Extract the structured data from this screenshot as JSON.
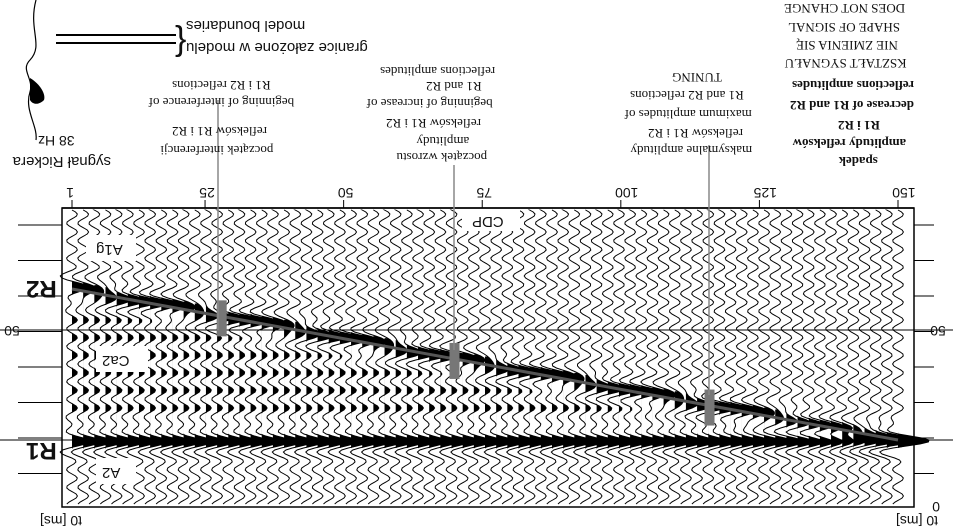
{
  "labels": {
    "model_boundaries": "model boundaries",
    "granice": "granice założone w modelu",
    "ricker_freq": "38 Hz",
    "ricker_name": "sygnał Rickera",
    "interference_en_1": "beginning of interference of",
    "interference_en_2": "R1 i R2 reflections",
    "interference_pl_1": "początek interferencji",
    "interference_pl_2": "refleksów R1 i R2",
    "increase_en_1": "beginning of increase of",
    "increase_en_2": "R1 and R2",
    "increase_en_3": "reflections  amplitudes",
    "increase_pl_1": "początek wzrostu",
    "increase_pl_2": "amplitudy",
    "increase_pl_3": "refleksów R1 i R2",
    "tuning": "TUNING",
    "maxamp_en_1": "maximum amplitudes of",
    "maxamp_en_2": "R1 and R2 reflections",
    "maxamp_pl_1": "maksymalne amplitudy",
    "maxamp_pl_2": "refleksów R1 i R2",
    "shape_en_1": "DOES NOT CHANGE",
    "shape_en_2": "SHAPE OF SIGNAL",
    "shape_pl_1": "NIE ZMIENIA SIĘ",
    "shape_pl_2": "KSZTAŁT SYGNAŁU",
    "decrease_en_1": "decrease of R1 and R2",
    "decrease_en_2": "reflections amplitudes",
    "decrease_pl_1": "spadek",
    "decrease_pl_2": "amplitudy refleksów",
    "decrease_pl_3": "R1 i R2",
    "cdp": "CDP",
    "t0": "t0 [ms]",
    "layer_top": "A1g",
    "layer_mid": "Ca2",
    "layer_bot": "A2",
    "r1": "R1",
    "r2": "R2",
    "time_50": "50",
    "time_0": "0"
  },
  "cdp_ticks": [
    {
      "value": 1,
      "label": "1"
    },
    {
      "value": 25,
      "label": "25"
    },
    {
      "value": 50,
      "label": "50"
    },
    {
      "value": 75,
      "label": "75"
    },
    {
      "value": 100,
      "label": "100"
    },
    {
      "value": 125,
      "label": "125"
    },
    {
      "value": 150,
      "label": "150"
    }
  ],
  "section": {
    "cdp_range": [
      1,
      150
    ],
    "time_range_ms": [
      0,
      60
    ],
    "r1_time_ms": 0,
    "r2_time_start_ms": 53,
    "r2_time_end_ms": 0,
    "trace_count": 75,
    "marker_cdps": [
      28,
      70,
      116
    ]
  }
}
